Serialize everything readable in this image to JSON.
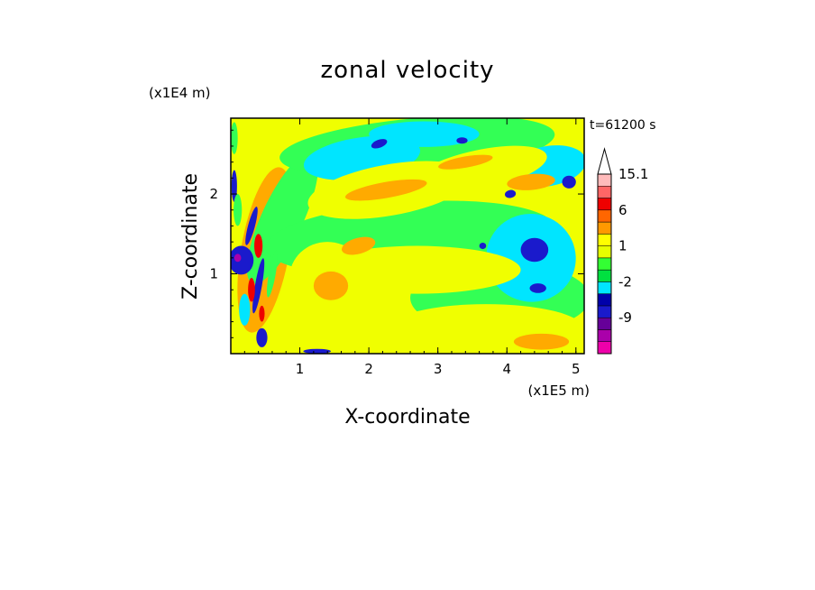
{
  "chart_data": {
    "type": "heatmap",
    "title": "zonal velocity",
    "xlabel": "X-coordinate",
    "ylabel": "Z-coordinate",
    "x_unit": "(x1E5 m)",
    "y_unit": "(x1E4 m)",
    "time_label": "t=61200 s",
    "xlim": [
      0,
      5.12
    ],
    "ylim": [
      0,
      2.95
    ],
    "x_ticks": [
      1,
      2,
      3,
      4,
      5
    ],
    "y_ticks": [
      1,
      2
    ],
    "x_tick_labels": [
      "1",
      "2",
      "3",
      "4",
      "5"
    ],
    "y_tick_labels": [
      "1",
      "2"
    ],
    "colorbar": {
      "levels": [
        -15,
        -12,
        -9,
        -6,
        -3,
        -2,
        -1,
        0,
        1,
        2,
        3,
        6,
        9,
        12,
        15.1
      ],
      "colors": [
        "#ee00aa",
        "#aa00aa",
        "#660099",
        "#1a1acc",
        "#0000aa",
        "#00e5ff",
        "#00e040",
        "#33ff33",
        "#e6ff00",
        "#ffff00",
        "#ff9900",
        "#ff6600",
        "#ee0000",
        "#ff6666",
        "#ffbbbb"
      ],
      "tick_labels": [
        "15.1",
        "6",
        "1",
        "-2",
        "-9"
      ],
      "tick_values": [
        15.1,
        6,
        1,
        -2,
        -9
      ],
      "extend": "max"
    },
    "background_class": "yellow",
    "regions": [
      {
        "cls": "orange",
        "cx": 0.5,
        "cy": 1.3,
        "rx": 0.35,
        "ry": 1.05,
        "rot": 10
      },
      {
        "cls": "green",
        "cx": 0.75,
        "cy": 1.7,
        "rx": 0.3,
        "ry": 0.9,
        "rot": 25
      },
      {
        "cls": "green",
        "cx": 2.6,
        "cy": 1.45,
        "rx": 2.1,
        "ry": 0.45,
        "rot": -4
      },
      {
        "cls": "green",
        "cx": 3.9,
        "cy": 0.7,
        "rx": 1.3,
        "ry": 0.45,
        "rot": 0
      },
      {
        "cls": "green",
        "cx": 2.7,
        "cy": 2.6,
        "rx": 2.0,
        "ry": 0.35,
        "rot": -5
      },
      {
        "cls": "cyan",
        "cx": 1.9,
        "cy": 2.45,
        "rx": 0.85,
        "ry": 0.26,
        "rot": -8
      },
      {
        "cls": "cyan",
        "cx": 4.35,
        "cy": 1.2,
        "rx": 0.65,
        "ry": 0.55,
        "rot": 20
      },
      {
        "cls": "cyan",
        "cx": 4.6,
        "cy": 2.35,
        "rx": 0.55,
        "ry": 0.25,
        "rot": -10
      },
      {
        "cls": "cyan",
        "cx": 2.8,
        "cy": 2.75,
        "rx": 0.8,
        "ry": 0.16,
        "rot": 0
      },
      {
        "cls": "yellow",
        "cx": 2.3,
        "cy": 2.05,
        "rx": 1.2,
        "ry": 0.32,
        "rot": -10
      },
      {
        "cls": "yellow",
        "cx": 3.6,
        "cy": 2.3,
        "rx": 1.0,
        "ry": 0.25,
        "rot": -12
      },
      {
        "cls": "yellow",
        "cx": 2.7,
        "cy": 1.05,
        "rx": 1.5,
        "ry": 0.3,
        "rot": 0
      },
      {
        "cls": "yellow",
        "cx": 3.7,
        "cy": 0.32,
        "rx": 1.4,
        "ry": 0.3,
        "rot": 0
      },
      {
        "cls": "yellow",
        "cx": 1.4,
        "cy": 0.95,
        "rx": 0.55,
        "ry": 0.45,
        "rot": 0
      },
      {
        "cls": "orange",
        "cx": 1.45,
        "cy": 0.85,
        "rx": 0.25,
        "ry": 0.18,
        "rot": 0
      },
      {
        "cls": "orange",
        "cx": 2.25,
        "cy": 2.05,
        "rx": 0.6,
        "ry": 0.1,
        "rot": -10
      },
      {
        "cls": "orange",
        "cx": 3.4,
        "cy": 2.4,
        "rx": 0.4,
        "ry": 0.07,
        "rot": -10
      },
      {
        "cls": "orange",
        "cx": 4.35,
        "cy": 2.15,
        "rx": 0.35,
        "ry": 0.1,
        "rot": -5
      },
      {
        "cls": "orange",
        "cx": 1.85,
        "cy": 1.35,
        "rx": 0.25,
        "ry": 0.1,
        "rot": -15
      },
      {
        "cls": "orange",
        "cx": 4.5,
        "cy": 0.15,
        "rx": 0.4,
        "ry": 0.1,
        "rot": 0
      },
      {
        "cls": "darkblue",
        "cx": 4.4,
        "cy": 1.3,
        "rx": 0.2,
        "ry": 0.15,
        "rot": 0
      },
      {
        "cls": "darkblue",
        "cx": 2.15,
        "cy": 2.63,
        "rx": 0.12,
        "ry": 0.05,
        "rot": -20
      },
      {
        "cls": "darkblue",
        "cx": 3.35,
        "cy": 2.67,
        "rx": 0.08,
        "ry": 0.04,
        "rot": 0
      },
      {
        "cls": "darkblue",
        "cx": 4.05,
        "cy": 2.0,
        "rx": 0.08,
        "ry": 0.05,
        "rot": -10
      },
      {
        "cls": "darkblue",
        "cx": 4.9,
        "cy": 2.15,
        "rx": 0.1,
        "ry": 0.08,
        "rot": 0
      },
      {
        "cls": "darkblue",
        "cx": 4.45,
        "cy": 0.82,
        "rx": 0.12,
        "ry": 0.06,
        "rot": 0
      },
      {
        "cls": "darkblue",
        "cx": 3.65,
        "cy": 1.35,
        "rx": 0.05,
        "ry": 0.04,
        "rot": 0
      },
      {
        "cls": "darkblue",
        "cx": 1.25,
        "cy": 0.03,
        "rx": 0.2,
        "ry": 0.03,
        "rot": 0
      },
      {
        "cls": "darkblue",
        "cx": 0.15,
        "cy": 1.17,
        "rx": 0.18,
        "ry": 0.18,
        "rot": 0
      },
      {
        "cls": "darkblue",
        "cx": 0.3,
        "cy": 1.6,
        "rx": 0.05,
        "ry": 0.25,
        "rot": 15
      },
      {
        "cls": "darkblue",
        "cx": 0.4,
        "cy": 0.85,
        "rx": 0.05,
        "ry": 0.35,
        "rot": 10
      },
      {
        "cls": "darkblue",
        "cx": 0.45,
        "cy": 0.2,
        "rx": 0.08,
        "ry": 0.12,
        "rot": 0
      },
      {
        "cls": "darkblue",
        "cx": 0.05,
        "cy": 2.1,
        "rx": 0.04,
        "ry": 0.2,
        "rot": 0
      },
      {
        "cls": "purple",
        "cx": 0.1,
        "cy": 1.2,
        "rx": 0.05,
        "ry": 0.05,
        "rot": 0
      },
      {
        "cls": "red",
        "cx": 0.4,
        "cy": 1.35,
        "rx": 0.06,
        "ry": 0.15,
        "rot": 0
      },
      {
        "cls": "red",
        "cx": 0.3,
        "cy": 0.8,
        "rx": 0.05,
        "ry": 0.15,
        "rot": 0
      },
      {
        "cls": "red",
        "cx": 0.45,
        "cy": 0.5,
        "rx": 0.04,
        "ry": 0.1,
        "rot": 0
      },
      {
        "cls": "cyan",
        "cx": 0.2,
        "cy": 0.55,
        "rx": 0.08,
        "ry": 0.2,
        "rot": 0
      },
      {
        "cls": "green",
        "cx": 0.05,
        "cy": 2.7,
        "rx": 0.05,
        "ry": 0.2,
        "rot": 0
      },
      {
        "cls": "green",
        "cx": 0.1,
        "cy": 1.8,
        "rx": 0.06,
        "ry": 0.2,
        "rot": 0
      },
      {
        "cls": "green",
        "cx": 0.6,
        "cy": 1.0,
        "rx": 0.05,
        "ry": 0.3,
        "rot": 10
      }
    ]
  }
}
